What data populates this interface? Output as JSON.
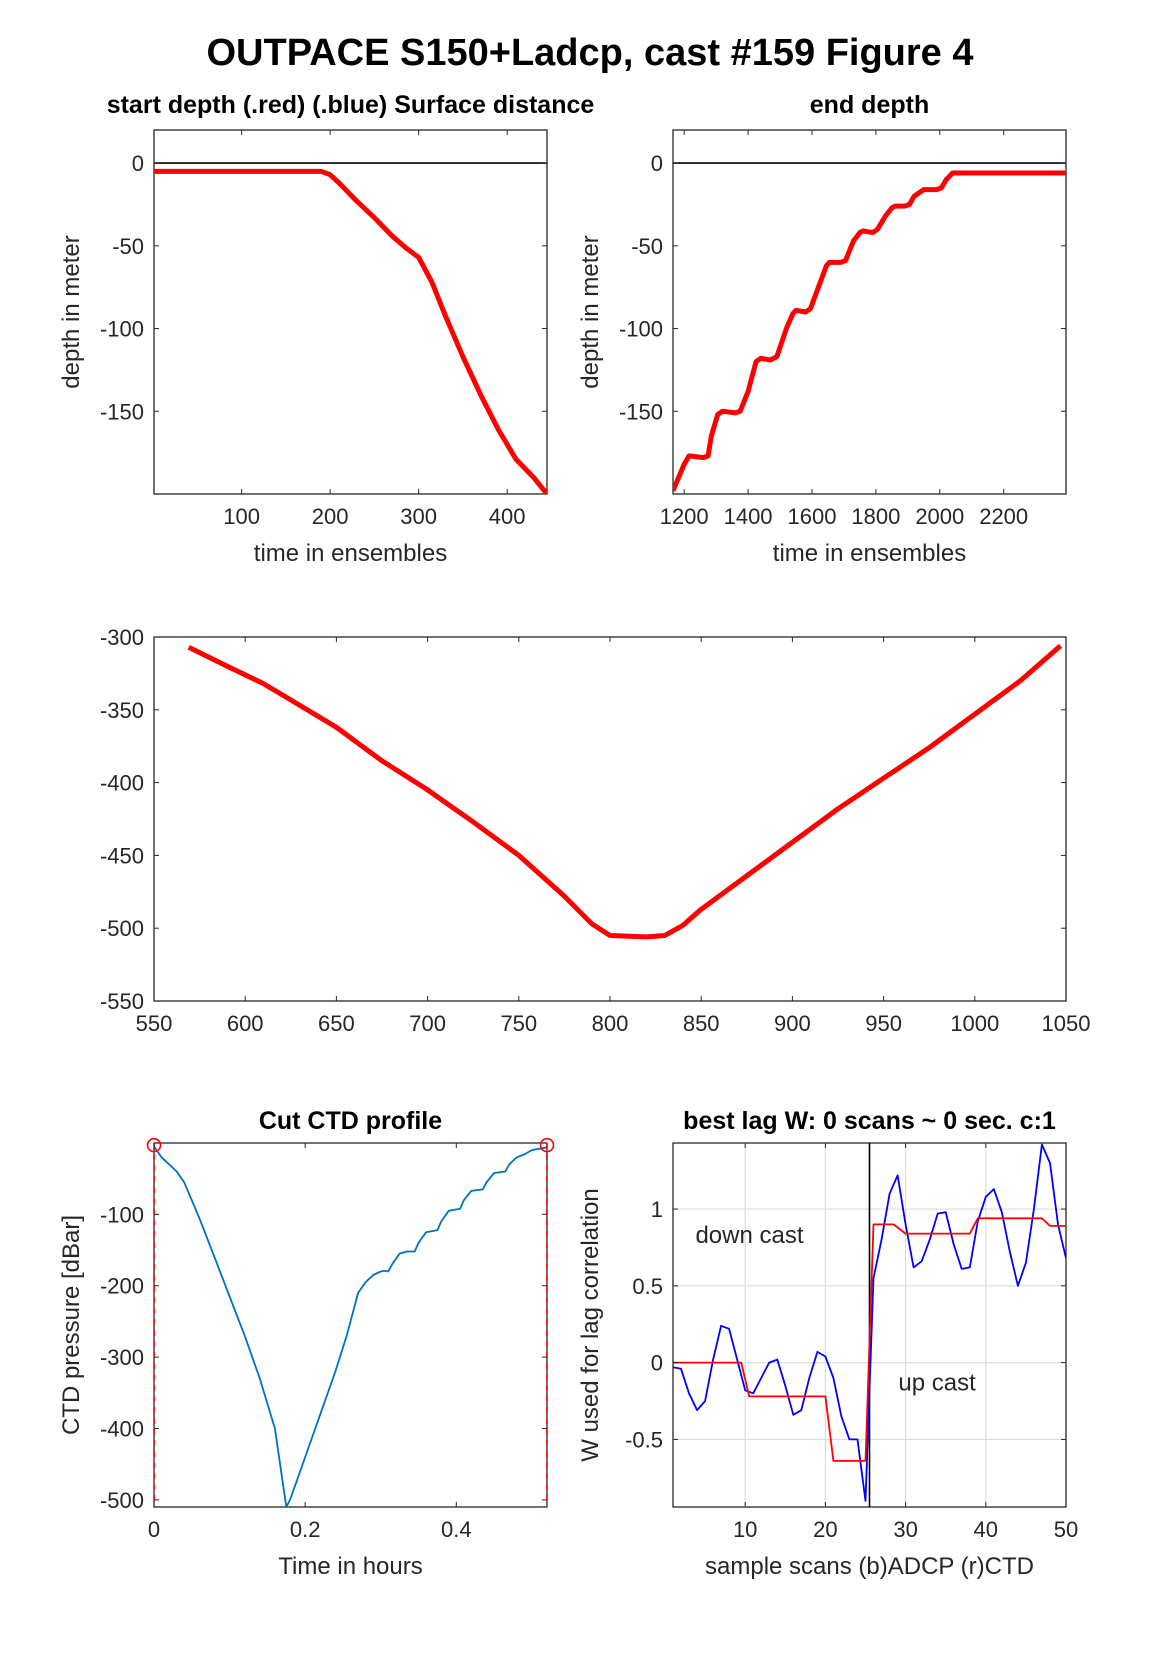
{
  "figure_title": "OUTPACE S150+Ladcp, cast #159    Figure 4",
  "colors": {
    "red": "#ff0000",
    "blue": "#0000ff",
    "ctd": "#0072bd",
    "axis": "#262626"
  },
  "chart_data": [
    {
      "id": "start",
      "type": "line",
      "title": "start depth (.red) (.blue) Surface distance",
      "xlabel": "time in ensembles",
      "ylabel": "depth in meter",
      "xlim": [
        1,
        445
      ],
      "ylim": [
        -200,
        20
      ],
      "xticks": [
        100,
        200,
        300,
        400
      ],
      "yticks": [
        0,
        -50,
        -100,
        -150
      ],
      "zero_line": true,
      "series": [
        {
          "color": "#ff0000",
          "x": [
            1,
            190,
            200,
            210,
            230,
            250,
            270,
            285,
            300,
            315,
            330,
            350,
            370,
            390,
            410,
            430,
            445
          ],
          "y": [
            -5,
            -5,
            -7,
            -12,
            -23,
            -33,
            -44,
            -51,
            -57,
            -72,
            -92,
            -117,
            -140,
            -161,
            -179,
            -190,
            -200
          ]
        }
      ]
    },
    {
      "id": "end",
      "type": "line",
      "title": "end depth",
      "xlabel": "time in ensembles",
      "ylabel": "depth in meter",
      "xlim": [
        1165,
        2395
      ],
      "ylim": [
        -200,
        20
      ],
      "xticks": [
        1200,
        1400,
        1600,
        1800,
        2000,
        2200
      ],
      "yticks": [
        0,
        -50,
        -100,
        -150
      ],
      "zero_line": true,
      "series": [
        {
          "color": "#ff0000",
          "x": [
            1165,
            1200,
            1215,
            1260,
            1275,
            1285,
            1305,
            1320,
            1360,
            1375,
            1400,
            1425,
            1440,
            1470,
            1490,
            1520,
            1540,
            1550,
            1580,
            1595,
            1620,
            1645,
            1655,
            1690,
            1705,
            1730,
            1750,
            1760,
            1790,
            1805,
            1830,
            1850,
            1860,
            1890,
            1905,
            1920,
            1950,
            1960,
            1990,
            2005,
            2020,
            2040,
            2060,
            2200,
            2395
          ],
          "y": [
            -198,
            -182,
            -177,
            -178,
            -177,
            -165,
            -152,
            -150,
            -151,
            -150,
            -138,
            -120,
            -118,
            -119,
            -117,
            -100,
            -91,
            -89,
            -90,
            -88,
            -75,
            -62,
            -60,
            -60,
            -59,
            -47,
            -42,
            -41,
            -42,
            -40,
            -32,
            -27,
            -26,
            -26,
            -25,
            -20,
            -16,
            -16,
            -16,
            -15,
            -10,
            -6,
            -6,
            -6,
            -6
          ]
        }
      ]
    },
    {
      "id": "middle",
      "type": "line",
      "title": "",
      "xlabel": "",
      "ylabel": "",
      "xlim": [
        550,
        1050
      ],
      "ylim": [
        -550,
        -300
      ],
      "xticks": [
        550,
        600,
        650,
        700,
        750,
        800,
        850,
        900,
        950,
        1000,
        1050
      ],
      "yticks": [
        -300,
        -350,
        -400,
        -450,
        -500,
        -550
      ],
      "series": [
        {
          "color": "#ff0000",
          "x": [
            569,
            590,
            610,
            630,
            650,
            675,
            700,
            725,
            750,
            775,
            790,
            800,
            820,
            830,
            840,
            850,
            875,
            900,
            925,
            950,
            975,
            1000,
            1025,
            1047
          ],
          "y": [
            -307,
            -320,
            -332,
            -347,
            -362,
            -385,
            -405,
            -427,
            -450,
            -478,
            -497,
            -505,
            -506,
            -505,
            -498,
            -487,
            -464,
            -441,
            -418,
            -397,
            -376,
            -353,
            -330,
            -306
          ]
        }
      ]
    },
    {
      "id": "ctd",
      "type": "line",
      "title": "Cut CTD profile",
      "xlabel": "Time in hours",
      "ylabel": "CTD pressure [dBar]",
      "xlim": [
        0,
        0.52
      ],
      "ylim": [
        -510,
        0
      ],
      "xticks": [
        0,
        0.2,
        0.4
      ],
      "xticklabels": [
        "0",
        "0.2",
        "0.4"
      ],
      "yticks": [
        -100,
        -200,
        -300,
        -400,
        -500
      ],
      "series": [
        {
          "color": "#0072bd",
          "x": [
            0,
            0.01,
            0.03,
            0.04,
            0.06,
            0.08,
            0.1,
            0.12,
            0.14,
            0.16,
            0.175,
            0.18,
            0.2,
            0.22,
            0.24,
            0.255,
            0.27,
            0.28,
            0.29,
            0.3,
            0.305,
            0.31,
            0.315,
            0.325,
            0.335,
            0.345,
            0.35,
            0.36,
            0.375,
            0.38,
            0.39,
            0.405,
            0.41,
            0.42,
            0.435,
            0.44,
            0.45,
            0.465,
            0.47,
            0.48,
            0.49,
            0.5,
            0.52
          ],
          "y": [
            -5,
            -20,
            -40,
            -55,
            -105,
            -160,
            -215,
            -270,
            -330,
            -400,
            -510,
            -500,
            -440,
            -380,
            -320,
            -270,
            -210,
            -195,
            -185,
            -180,
            -179,
            -180,
            -170,
            -155,
            -152,
            -152,
            -140,
            -125,
            -122,
            -110,
            -95,
            -92,
            -80,
            -67,
            -65,
            -55,
            -42,
            -40,
            -30,
            -20,
            -16,
            -10,
            -6
          ]
        },
        {
          "color": "#ff0000",
          "dashed": true,
          "x": [
            0,
            0
          ],
          "y": [
            0,
            -510
          ]
        },
        {
          "color": "#ff0000",
          "dashed": true,
          "x": [
            0.52,
            0.52
          ],
          "y": [
            0,
            -510
          ]
        }
      ],
      "markers": [
        {
          "x": 0,
          "y": -3
        },
        {
          "x": 0.52,
          "y": -3
        }
      ]
    },
    {
      "id": "lag",
      "type": "line",
      "title": "best lag W: 0 scans ~ 0 sec.  c:1",
      "xlabel": "sample scans (b)ADCP (r)CTD",
      "ylabel": "W used for lag correlation",
      "xlim": [
        1,
        50
      ],
      "ylim": [
        -0.94,
        1.43
      ],
      "xticks": [
        10,
        20,
        30,
        40,
        50
      ],
      "yticks": [
        1,
        0.5,
        0,
        -0.5
      ],
      "yticklabels": [
        "1",
        "0.5",
        "0",
        "-0.5"
      ],
      "grid": true,
      "vline_x": 25.5,
      "annotations": [
        {
          "text": "down cast",
          "x": 3.8,
          "y": 0.78
        },
        {
          "text": "up cast",
          "x": 29.1,
          "y": -0.18
        }
      ],
      "series": [
        {
          "name": "ADCP",
          "color": "#0000ff",
          "x": [
            1,
            2,
            3,
            4,
            5,
            6,
            7,
            8,
            9,
            10,
            11,
            12,
            13,
            14,
            15,
            16,
            17,
            18,
            19,
            20,
            21,
            22,
            23,
            24,
            25,
            26,
            27,
            28,
            29,
            30,
            31,
            32,
            33,
            34,
            35,
            36,
            37,
            38,
            39,
            40,
            41,
            42,
            43,
            44,
            45,
            46,
            47,
            48,
            49,
            50
          ],
          "y": [
            -0.03,
            -0.04,
            -0.2,
            -0.31,
            -0.25,
            0.02,
            0.24,
            0.22,
            0.02,
            -0.18,
            -0.2,
            -0.1,
            -0.0,
            0.02,
            -0.15,
            -0.34,
            -0.31,
            -0.1,
            0.07,
            0.04,
            -0.1,
            -0.35,
            -0.5,
            -0.5,
            -0.9,
            0.55,
            0.8,
            1.1,
            1.22,
            0.9,
            0.62,
            0.66,
            0.8,
            0.97,
            0.98,
            0.77,
            0.61,
            0.62,
            0.92,
            1.08,
            1.13,
            0.98,
            0.72,
            0.5,
            0.65,
            1.0,
            1.42,
            1.3,
            0.9,
            0.68
          ]
        },
        {
          "name": "CTD",
          "color": "#ff0000",
          "x": [
            1,
            9.5,
            10.5,
            20,
            21,
            25,
            26,
            27,
            28.5,
            30,
            38,
            39,
            47,
            48,
            50
          ],
          "y": [
            0,
            0,
            -0.22,
            -0.22,
            -0.64,
            -0.64,
            0.9,
            0.9,
            0.9,
            0.84,
            0.84,
            0.94,
            0.94,
            0.89,
            0.89
          ]
        }
      ]
    }
  ]
}
